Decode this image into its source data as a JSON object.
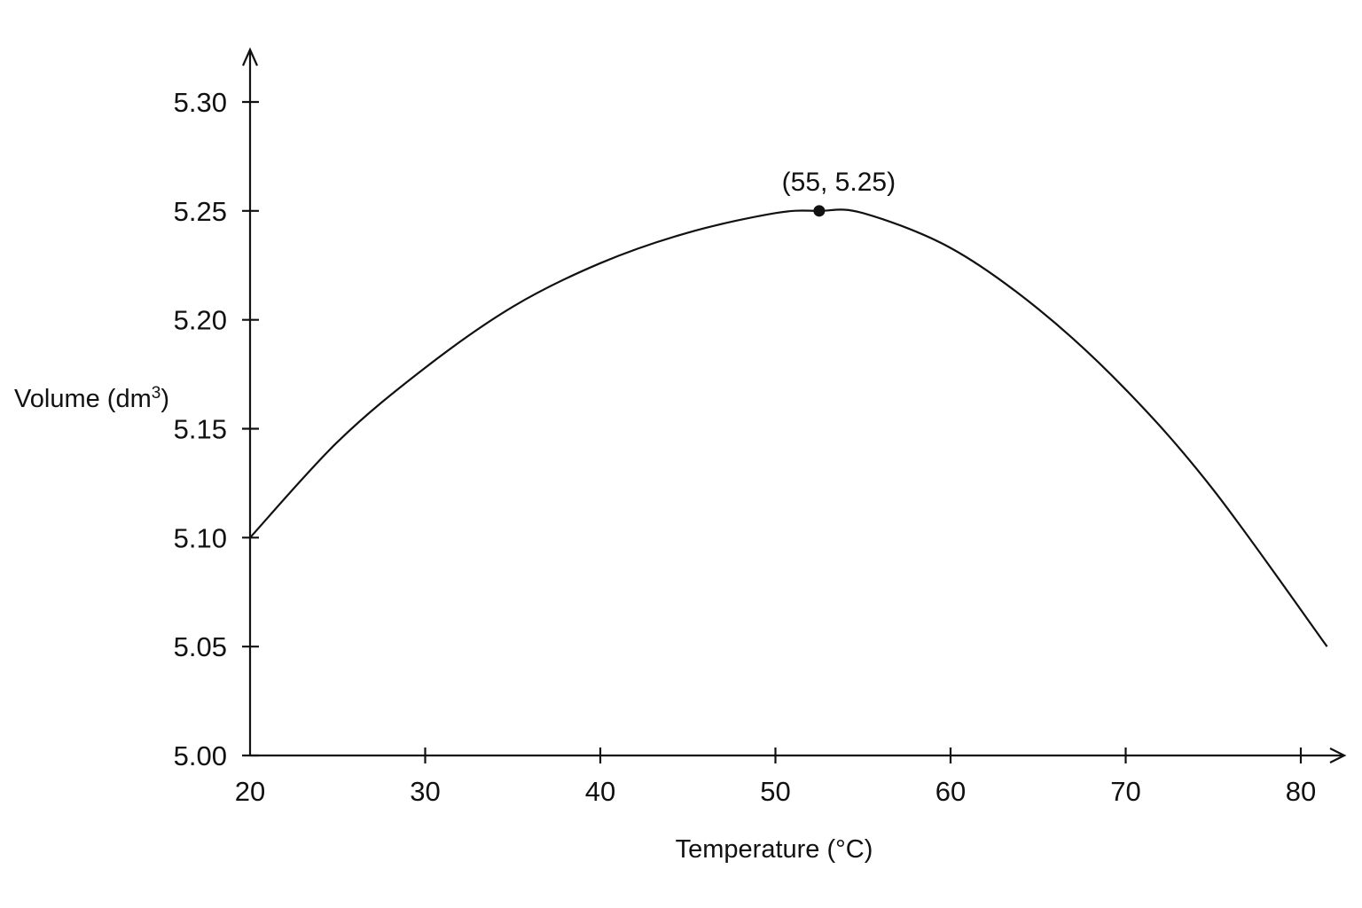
{
  "chart_data": {
    "type": "line",
    "title": "",
    "xlabel": "Temperature (°C)",
    "ylabel": "Volume (dm",
    "ylabel_superscript": "3",
    "ylabel_close": ")",
    "xlim": [
      20,
      81.5
    ],
    "ylim": [
      5.0,
      5.32
    ],
    "x_ticks": [
      20,
      30,
      40,
      50,
      60,
      70,
      80
    ],
    "x_tick_labels": [
      "20",
      "30",
      "40",
      "50",
      "60",
      "70",
      "80"
    ],
    "y_ticks": [
      5.0,
      5.05,
      5.1,
      5.15,
      5.2,
      5.25,
      5.3
    ],
    "y_tick_labels": [
      "5.00",
      "5.05",
      "5.10",
      "5.15",
      "5.20",
      "5.25",
      "5.30"
    ],
    "grid": false,
    "legend": "none",
    "series": [
      {
        "x": [
          20,
          25,
          30,
          35,
          40,
          45,
          50,
          52.5,
          55,
          60,
          65,
          70,
          75,
          81.5
        ],
        "y": [
          5.1,
          5.144,
          5.178,
          5.206,
          5.226,
          5.24,
          5.249,
          5.25,
          5.249,
          5.233,
          5.205,
          5.168,
          5.122,
          5.05
        ],
        "color": "#111111"
      }
    ],
    "annotations": [
      {
        "text": "(55, 5.25)",
        "x": 52.5,
        "y": 5.25,
        "marker": "dot"
      }
    ]
  }
}
